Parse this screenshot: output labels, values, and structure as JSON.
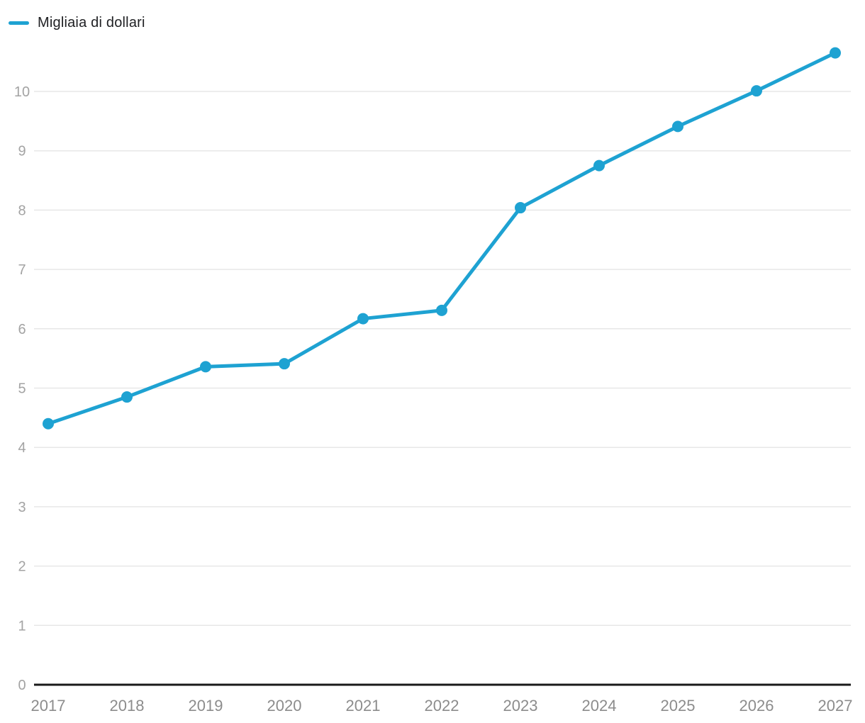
{
  "legend": {
    "label": "Migliaia di dollari"
  },
  "chart_data": {
    "type": "line",
    "categories": [
      "2017",
      "2018",
      "2019",
      "2020",
      "2021",
      "2022",
      "2023",
      "2024",
      "2025",
      "2026",
      "2027"
    ],
    "series": [
      {
        "name": "Migliaia di dollari",
        "color": "#1EA2D2",
        "values": [
          4.4,
          4.85,
          5.36,
          5.41,
          6.17,
          6.31,
          8.04,
          8.75,
          9.41,
          10.01,
          10.65
        ]
      }
    ],
    "yticks": [
      0,
      1,
      2,
      3,
      4,
      5,
      6,
      7,
      8,
      9,
      10
    ],
    "ylim": [
      0,
      10
    ],
    "xlabel": "",
    "ylabel": "",
    "grid": true,
    "legend_position": "top-left",
    "colors": {
      "line": "#1EA2D2",
      "marker": "#1EA2D2",
      "grid": "#e7e7e7",
      "axis_line": "#1a1a1a",
      "x_tick_label": "#8c8c8c",
      "y_tick_label": "#a3a3a3",
      "legend_text": "#202124",
      "background": "#ffffff"
    }
  }
}
